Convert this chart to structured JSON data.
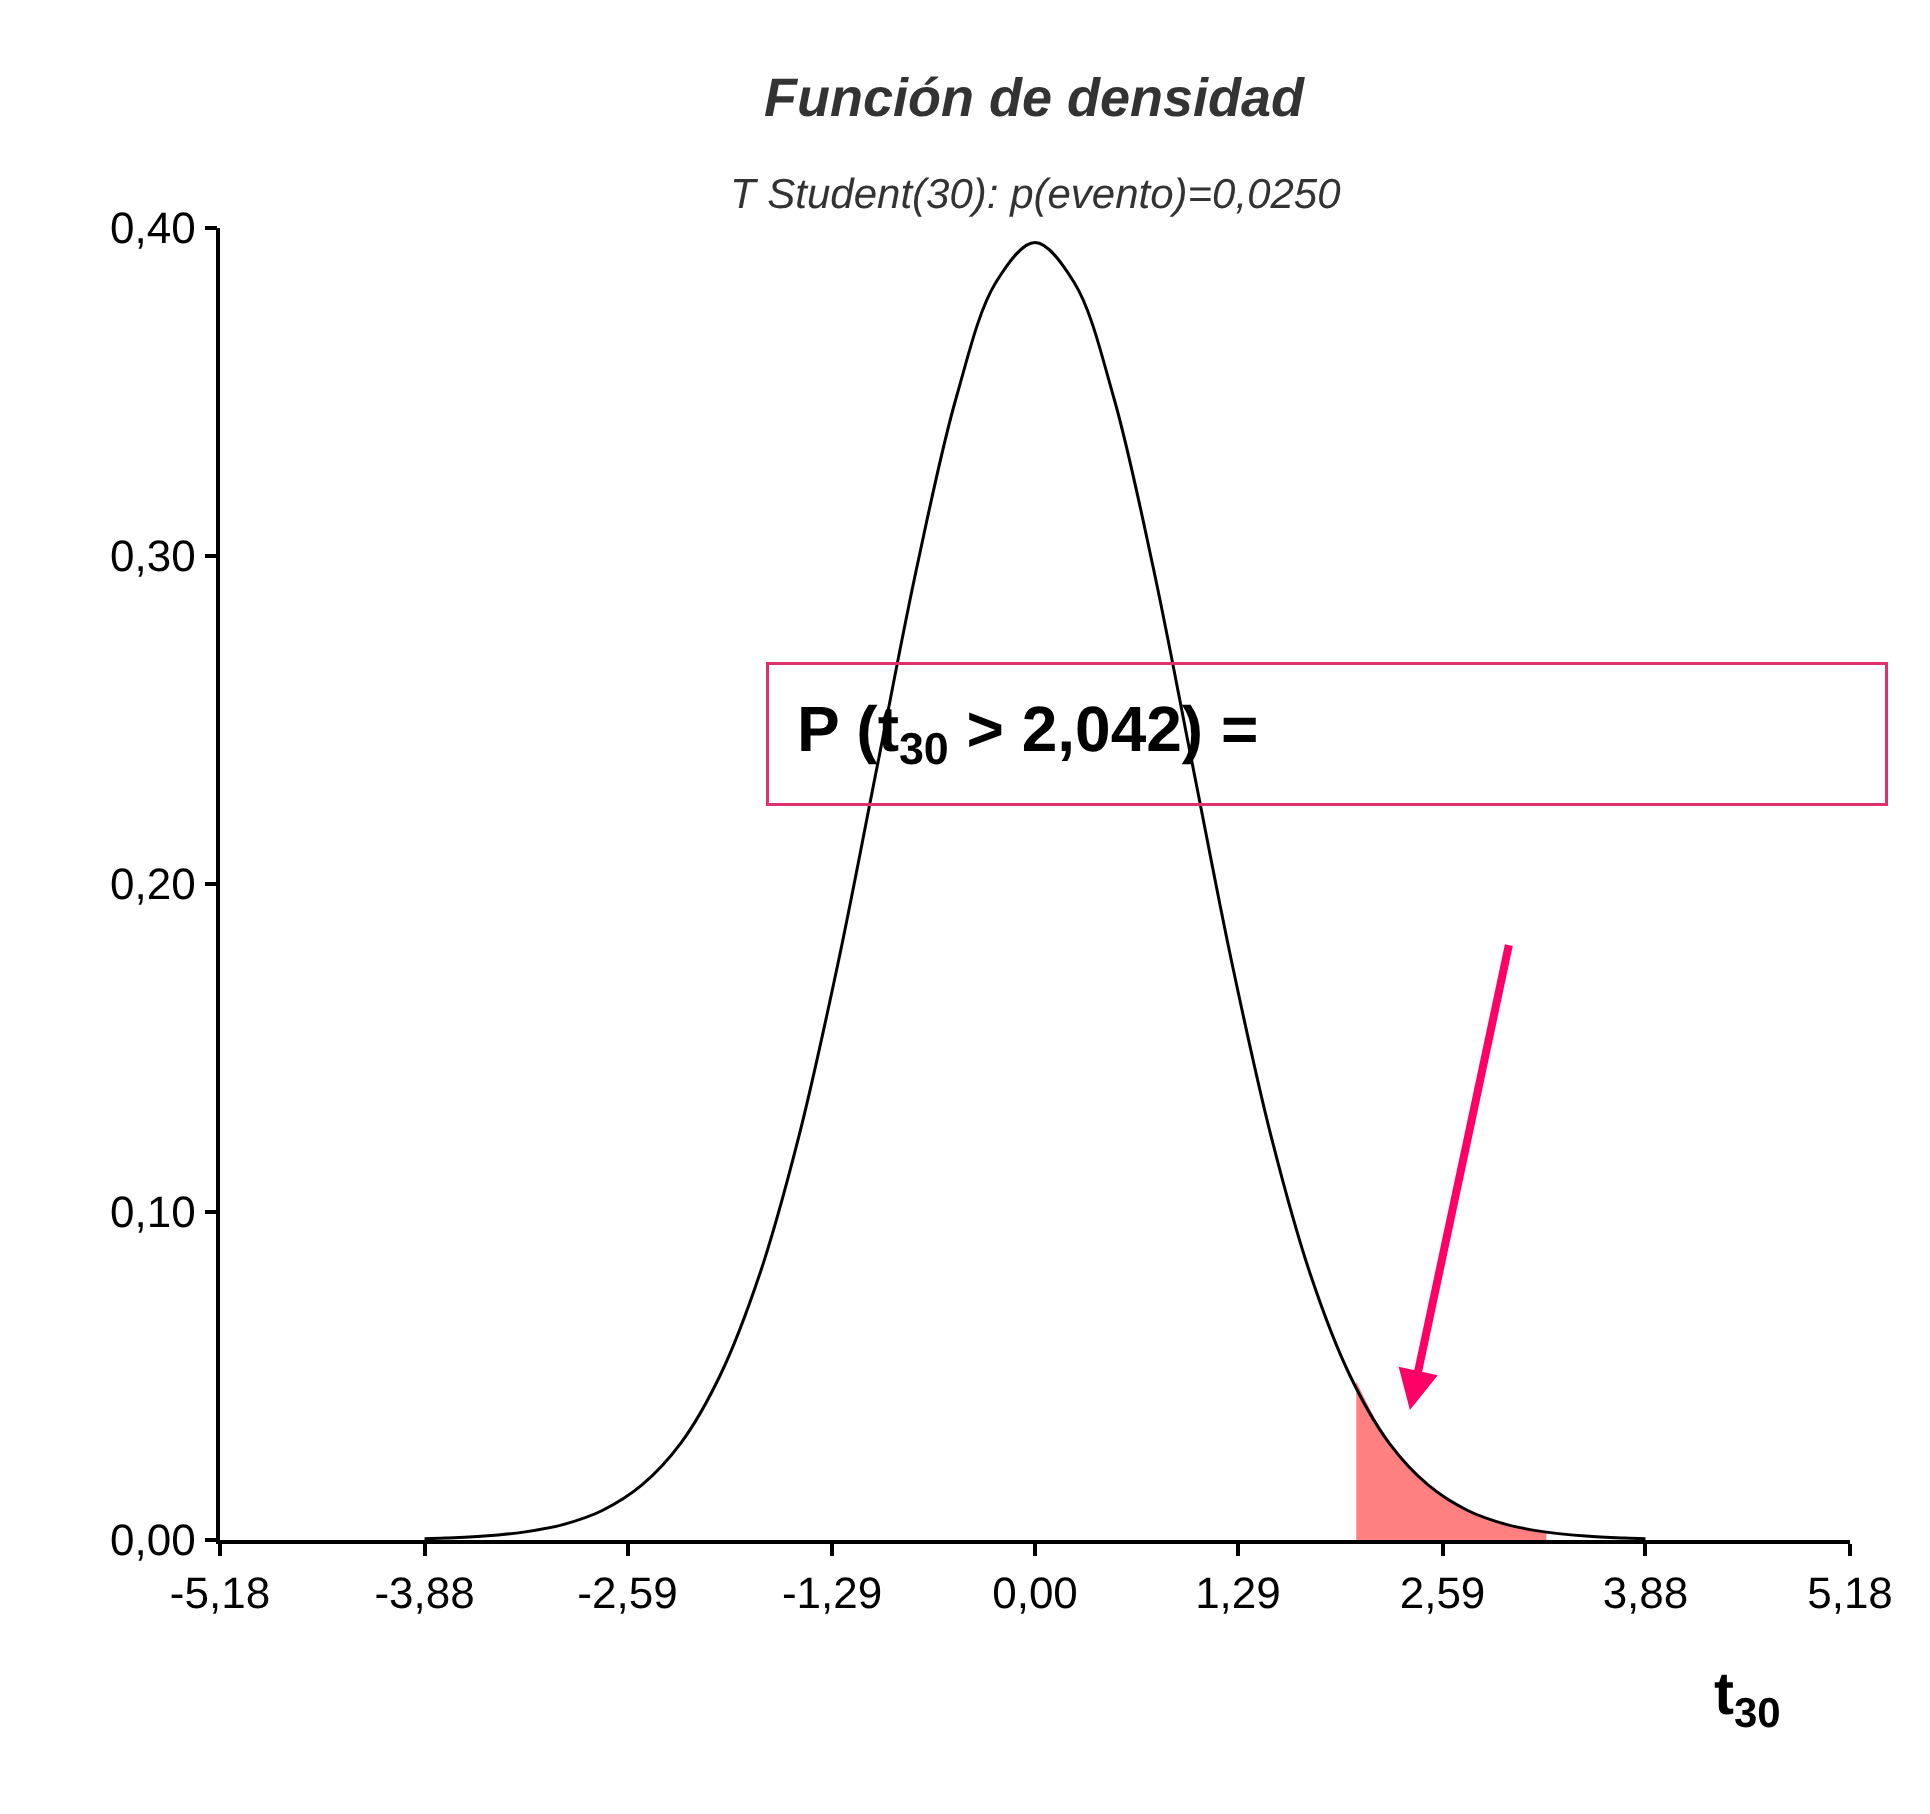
{
  "chart_data": {
    "type": "line",
    "title": "Función de densidad",
    "subtitle": "T Student(30): p(evento)=0,0250",
    "xlabel": "t$_{30}$",
    "annotations": [
      "P (t$_{30}$ > 2,042) ="
    ],
    "series": [
      {
        "color": "#000000",
        "x": [
          -3.88,
          -3.75,
          -3.5,
          -3.25,
          -3.0,
          -2.75,
          -2.5,
          -2.25,
          -2.0,
          -1.75,
          -1.5,
          -1.25,
          -1.0,
          -0.75,
          -0.5,
          -0.25,
          0.0,
          0.25,
          0.5,
          0.75,
          1.0,
          1.25,
          1.5,
          1.75,
          2.0,
          2.25,
          2.5,
          2.75,
          3.0,
          3.25,
          3.5,
          3.75,
          3.88
        ],
        "values": [
          0.0004,
          0.0006,
          0.0012,
          0.0024,
          0.0047,
          0.009,
          0.0167,
          0.0296,
          0.0503,
          0.081,
          0.1232,
          0.1763,
          0.2366,
          0.2968,
          0.3484,
          0.3833,
          0.3956,
          0.3833,
          0.3484,
          0.2968,
          0.2366,
          0.1763,
          0.1232,
          0.081,
          0.0503,
          0.0296,
          0.0167,
          0.009,
          0.0047,
          0.0024,
          0.0012,
          0.0006,
          0.0004
        ]
      },
      {
        "type": "area",
        "color": "#ff8080",
        "x": [
          2.042,
          2.25,
          2.5,
          2.75,
          3.0,
          3.25
        ],
        "values": [
          0.048,
          0.0296,
          0.0167,
          0.009,
          0.0047,
          0.0024
        ]
      }
    ],
    "xlim": [
      -5.18,
      5.18
    ],
    "xticks": [
      {
        "value": -5.18,
        "label": "-5,18"
      },
      {
        "value": -3.88,
        "label": "-3,88"
      },
      {
        "value": -2.59,
        "label": "-2,59"
      },
      {
        "value": -1.29,
        "label": "-1,29"
      },
      {
        "value": 0,
        "label": "0,00"
      },
      {
        "value": 1.29,
        "label": "1,29"
      },
      {
        "value": 2.59,
        "label": "2,59"
      },
      {
        "value": 3.88,
        "label": "3,88"
      },
      {
        "value": 5.18,
        "label": "5,18"
      }
    ],
    "ylim": [
      0,
      0.4
    ],
    "yticks": [
      {
        "value": 0,
        "label": "0,00"
      },
      {
        "value": 0.1,
        "label": "0,10"
      },
      {
        "value": 0.2,
        "label": "0,20"
      },
      {
        "value": 0.3,
        "label": "0,30"
      },
      {
        "value": 0.4,
        "label": "0,40"
      }
    ],
    "marker": "none",
    "line_style": "solid"
  }
}
